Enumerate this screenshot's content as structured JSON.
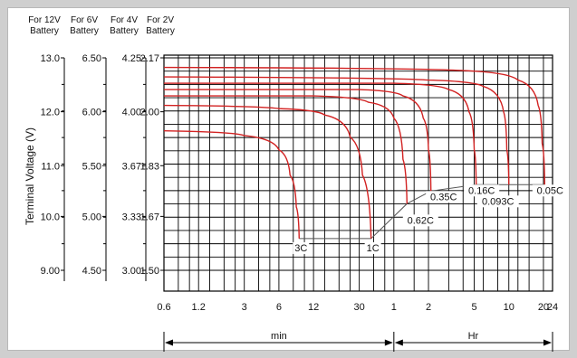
{
  "chart_data": {
    "type": "line",
    "title": "",
    "ylabel": "Terminal Voltage (V)",
    "y_axes": [
      {
        "header": [
          "For 12V",
          "Battery"
        ],
        "ticks": [
          "13.0",
          "12.0",
          "11.0",
          "10.0",
          "9.00"
        ]
      },
      {
        "header": [
          "For 6V",
          "Battery"
        ],
        "ticks": [
          "6.50",
          "6.00",
          "5.50",
          "5.00",
          "4.50"
        ]
      },
      {
        "header": [
          "For 4V",
          "Battery"
        ],
        "ticks": [
          "4.25",
          "4.00",
          "3.67",
          "3.33",
          "3.00"
        ]
      },
      {
        "header": [
          "For 2V",
          "Battery"
        ],
        "ticks": [
          "2.17",
          "2.00",
          "1.83",
          "1.67",
          "1.50"
        ]
      }
    ],
    "y2_values": [
      2.17,
      2.0,
      1.83,
      1.67,
      1.5
    ],
    "ylim": [
      1.5,
      2.17
    ],
    "x_tick_labels": [
      "0.6",
      "1.2",
      "3",
      "6",
      "12",
      "30",
      "1",
      "2",
      "5",
      "10",
      "20",
      "24"
    ],
    "x_units": [
      "min",
      "Hr"
    ],
    "x_scale": "log",
    "series": [
      {
        "name": "3C",
        "end_voltage": 1.6,
        "points": [
          [
            0.6,
            1.94
          ],
          [
            3,
            1.925
          ],
          [
            6,
            1.88
          ],
          [
            7.5,
            1.8
          ],
          [
            8.5,
            1.7
          ],
          [
            9,
            1.6
          ]
        ]
      },
      {
        "name": "1C",
        "end_voltage": 1.6,
        "points": [
          [
            0.6,
            2.02
          ],
          [
            6,
            2.01
          ],
          [
            15,
            1.99
          ],
          [
            25,
            1.92
          ],
          [
            32,
            1.8
          ],
          [
            38,
            1.6
          ]
        ]
      },
      {
        "name": "0.62C",
        "end_voltage": 1.71,
        "points": [
          [
            0.6,
            2.05
          ],
          [
            12,
            2.05
          ],
          [
            36,
            2.03
          ],
          [
            60,
            1.98
          ],
          [
            72,
            1.85
          ],
          [
            78,
            1.71
          ]
        ]
      },
      {
        "name": "0.35C",
        "end_voltage": 1.75,
        "points": [
          [
            0.6,
            2.07
          ],
          [
            30,
            2.07
          ],
          [
            72,
            2.05
          ],
          [
            108,
            1.98
          ],
          [
            120,
            1.88
          ],
          [
            126,
            1.75
          ]
        ]
      },
      {
        "name": "0.16C",
        "end_voltage": 1.77,
        "points": [
          [
            0.6,
            2.09
          ],
          [
            60,
            2.09
          ],
          [
            180,
            2.07
          ],
          [
            270,
            2.0
          ],
          [
            300,
            1.88
          ],
          [
            312,
            1.77
          ]
        ]
      },
      {
        "name": "0.093C",
        "end_voltage": 1.77,
        "points": [
          [
            0.6,
            2.11
          ],
          [
            120,
            2.1
          ],
          [
            360,
            2.08
          ],
          [
            540,
            2.0
          ],
          [
            576,
            1.88
          ],
          [
            600,
            1.77
          ]
        ]
      },
      {
        "name": "0.05C",
        "end_voltage": 1.77,
        "points": [
          [
            0.6,
            2.14
          ],
          [
            240,
            2.13
          ],
          [
            720,
            2.1
          ],
          [
            1080,
            2.02
          ],
          [
            1170,
            1.9
          ],
          [
            1230,
            1.77
          ]
        ]
      }
    ],
    "colors": {
      "curve": "#d22222",
      "connector": "#555555",
      "grid": "#000000"
    }
  }
}
